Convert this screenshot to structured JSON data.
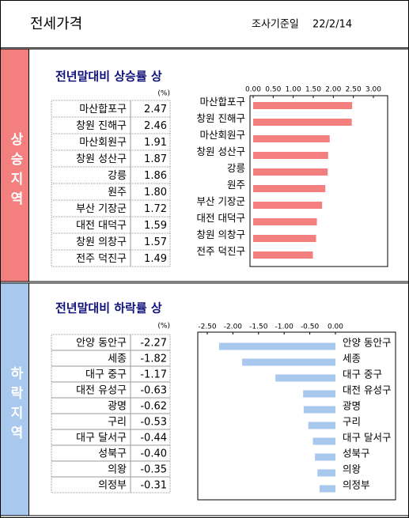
{
  "header": {
    "title": "전세가격",
    "date_label": "조사기준일",
    "date": "22/2/14"
  },
  "sections": [
    {
      "side_label": "상승지역",
      "title": "전년말대비 상승률 상",
      "unit": "(%)"
    },
    {
      "side_label": "하락지역",
      "title": "전년말대비 하락률 상",
      "unit": "(%)"
    }
  ],
  "chart_data": [
    {
      "type": "bar",
      "orientation": "horizontal",
      "color": "#f47f7f",
      "categories": [
        "마산합포구",
        "창원 진해구",
        "마산회원구",
        "창원 성산구",
        "강릉",
        "원주",
        "부산 기장군",
        "대전 대덕구",
        "창원 의창구",
        "전주 덕진구"
      ],
      "values": [
        2.47,
        2.46,
        1.91,
        1.87,
        1.86,
        1.8,
        1.72,
        1.59,
        1.57,
        1.49
      ],
      "value_labels": [
        "2.47",
        "2.46",
        "1.91",
        "1.87",
        "1.86",
        "1.80",
        "1.72",
        "1.59",
        "1.57",
        "1.49"
      ],
      "xlim": [
        0,
        3
      ],
      "xticks": [
        {
          "value": 0,
          "label": "0.00"
        },
        {
          "value": 0.5,
          "label": "0.50"
        },
        {
          "value": 1,
          "label": "1.00"
        },
        {
          "value": 1.5,
          "label": "1.50"
        },
        {
          "value": 2,
          "label": "2.00"
        },
        {
          "value": 2.5,
          "label": "2.50"
        },
        {
          "value": 3,
          "label": "3.00"
        }
      ]
    },
    {
      "type": "bar",
      "orientation": "horizontal",
      "color": "#a8c8ee",
      "categories": [
        "안양 동안구",
        "세종",
        "대구 중구",
        "대전 유성구",
        "광명",
        "구리",
        "대구 달서구",
        "성북구",
        "의왕",
        "의정부"
      ],
      "values": [
        -2.27,
        -1.82,
        -1.17,
        -0.63,
        -0.62,
        -0.53,
        -0.44,
        -0.4,
        -0.35,
        -0.31
      ],
      "value_labels": [
        "-2.27",
        "-1.82",
        "-1.17",
        "-0.63",
        "-0.62",
        "-0.53",
        "-0.44",
        "-0.40",
        "-0.35",
        "-0.31"
      ],
      "xlim": [
        -2.5,
        0
      ],
      "xticks": [
        {
          "value": -2.5,
          "label": "-2.50"
        },
        {
          "value": -2,
          "label": "-2.00"
        },
        {
          "value": -1.5,
          "label": "-1.50"
        },
        {
          "value": -1,
          "label": "-1.00"
        },
        {
          "value": -0.5,
          "label": "-0.50"
        },
        {
          "value": 0,
          "label": "0.00"
        }
      ]
    }
  ]
}
